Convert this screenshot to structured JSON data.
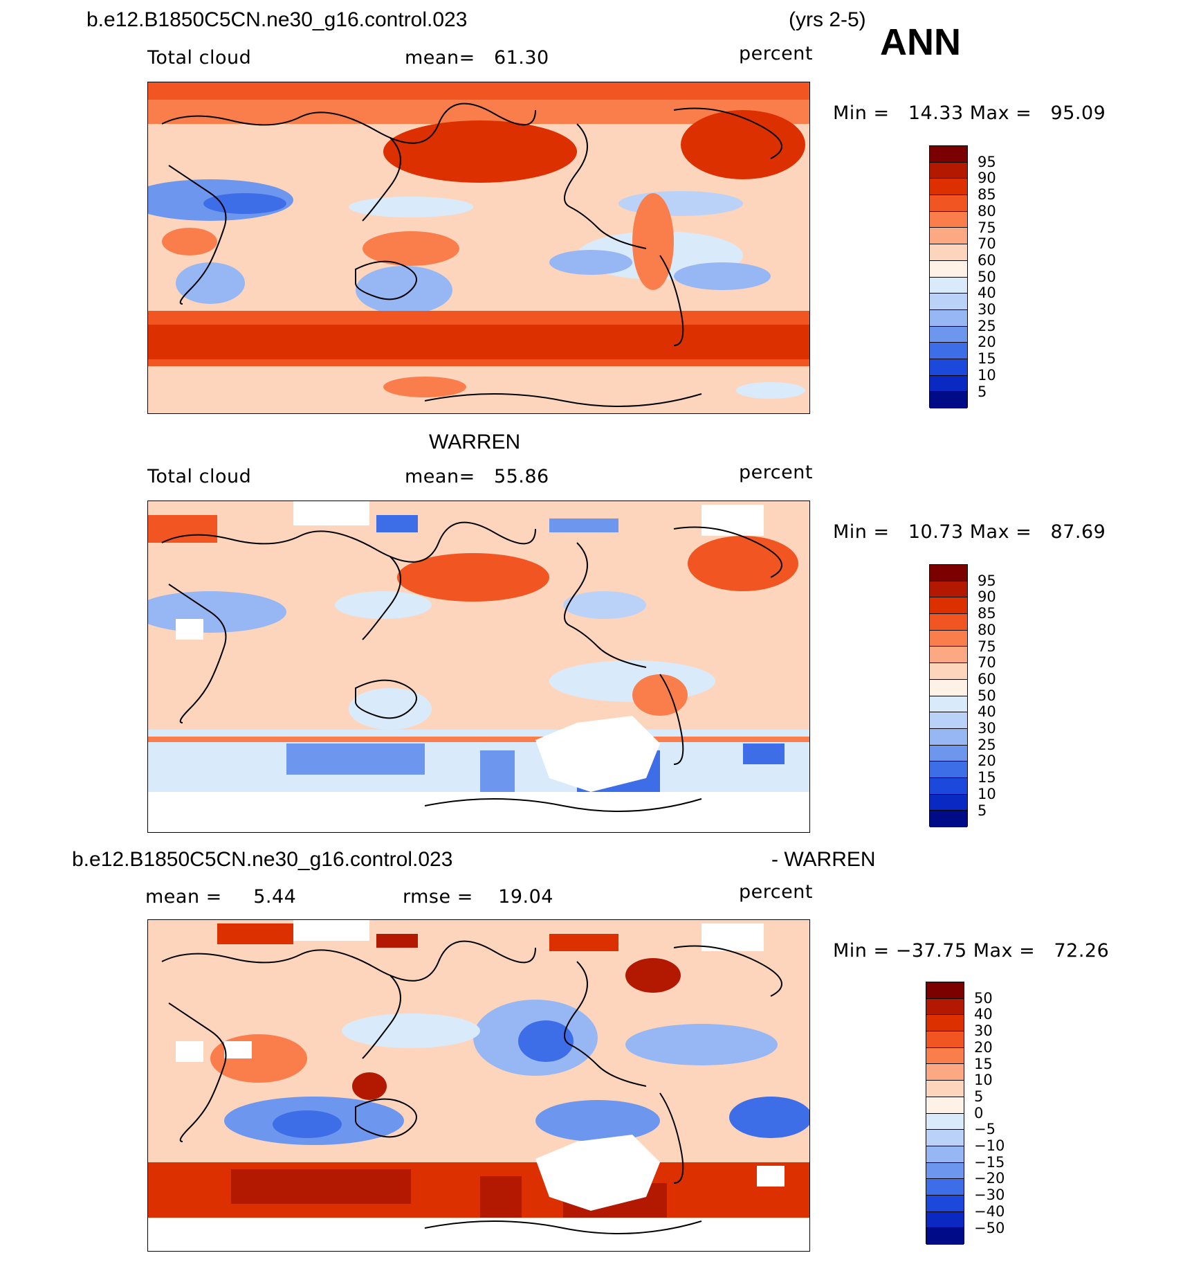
{
  "header": {
    "case_name": "b.e12.B1850C5CN.ne30_g16.control.023",
    "years": "(yrs 2-5)",
    "season": "ANN"
  },
  "panels": [
    {
      "label_left": "Total cloud",
      "mean_text": "mean=   61.30",
      "units": "percent",
      "minmax": "Min =   14.33 Max =   95.09",
      "colorbar_labels": [
        "95",
        "90",
        "85",
        "80",
        "75",
        "70",
        "60",
        "50",
        "40",
        "30",
        "25",
        "20",
        "15",
        "10",
        "5"
      ],
      "colors": [
        "#7b0000",
        "#b31800",
        "#dd3000",
        "#f05522",
        "#fa7e4c",
        "#fca883",
        "#fdd5bc",
        "#fef1e6",
        "#d9ebfb",
        "#bad2f7",
        "#96b7f4",
        "#6d96ef",
        "#3d6ee8",
        "#1c48dc",
        "#0929c2",
        "#000b88"
      ]
    },
    {
      "title": "WARREN",
      "label_left": "Total cloud",
      "mean_text": "mean=   55.86",
      "units": "percent",
      "minmax": "Min =   10.73 Max =   87.69",
      "colorbar_labels": [
        "95",
        "90",
        "85",
        "80",
        "75",
        "70",
        "60",
        "50",
        "40",
        "30",
        "25",
        "20",
        "15",
        "10",
        "5"
      ],
      "colors": [
        "#7b0000",
        "#b31800",
        "#dd3000",
        "#f05522",
        "#fa7e4c",
        "#fca883",
        "#fdd5bc",
        "#fef1e6",
        "#d9ebfb",
        "#bad2f7",
        "#96b7f4",
        "#6d96ef",
        "#3d6ee8",
        "#1c48dc",
        "#0929c2",
        "#000b88"
      ]
    },
    {
      "title_left": "b.e12.B1850C5CN.ne30_g16.control.023",
      "title_right": "- WARREN",
      "mean_text": "mean =     5.44",
      "rmse_text": "rmse =    19.04",
      "units": "percent",
      "minmax": "Min = −37.75 Max =   72.26",
      "colorbar_labels": [
        "50",
        "40",
        "30",
        "20",
        "15",
        "10",
        "5",
        "0",
        "−5",
        "−10",
        "−15",
        "−20",
        "−30",
        "−40",
        "−50"
      ],
      "colors": [
        "#7b0000",
        "#b31800",
        "#dd3000",
        "#f05522",
        "#fa7e4c",
        "#fca883",
        "#fdd5bc",
        "#fef1e6",
        "#d9ebfb",
        "#bad2f7",
        "#96b7f4",
        "#6d96ef",
        "#3d6ee8",
        "#1c48dc",
        "#0929c2",
        "#000b88"
      ]
    }
  ]
}
